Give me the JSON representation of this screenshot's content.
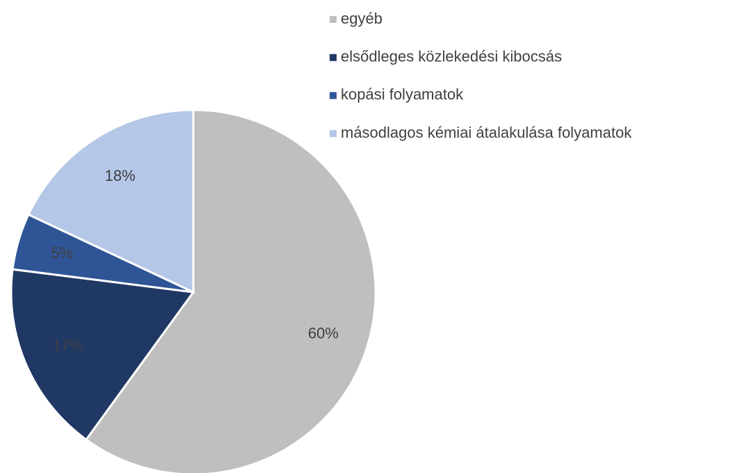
{
  "chart_data": {
    "type": "pie",
    "categories": [
      "egyéb",
      "elsődleges közlekedési kibocsás",
      "kopási folyamatok",
      "másodlagos kémiai átalakulása folyamatok"
    ],
    "values": [
      60,
      17,
      5,
      18
    ],
    "value_labels": [
      "60%",
      "17%",
      "5%",
      "18%"
    ],
    "colors": [
      "#bfbfbf",
      "#203864",
      "#2f5597",
      "#b4c7e7"
    ],
    "legend": "top-right"
  }
}
